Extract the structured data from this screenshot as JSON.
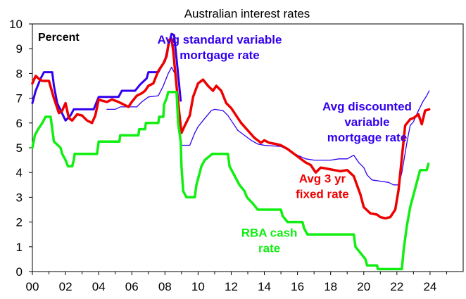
{
  "chart_data": {
    "type": "line",
    "title": "Australian interest rates",
    "unit_label": "Percent",
    "xlabel": "",
    "ylabel": "",
    "xlim": [
      2000,
      2026
    ],
    "ylim": [
      0,
      10
    ],
    "x_ticks": [
      {
        "value": 2000,
        "label": "00"
      },
      {
        "value": 2002,
        "label": "02"
      },
      {
        "value": 2004,
        "label": "04"
      },
      {
        "value": 2006,
        "label": "06"
      },
      {
        "value": 2008,
        "label": "08"
      },
      {
        "value": 2010,
        "label": "10"
      },
      {
        "value": 2012,
        "label": "12"
      },
      {
        "value": 2014,
        "label": "14"
      },
      {
        "value": 2016,
        "label": "16"
      },
      {
        "value": 2018,
        "label": "18"
      },
      {
        "value": 2020,
        "label": "20"
      },
      {
        "value": 2022,
        "label": "22"
      },
      {
        "value": 2024,
        "label": "24"
      }
    ],
    "y_ticks": [
      0,
      1,
      2,
      3,
      4,
      5,
      6,
      7,
      8,
      9,
      10
    ],
    "grid": false,
    "series": [
      {
        "name": "Avg standard variable mortgage rate",
        "color": "#3300ee",
        "stroke_width": 3,
        "points": [
          [
            2000.0,
            6.8
          ],
          [
            2000.2,
            7.3
          ],
          [
            2000.5,
            7.8
          ],
          [
            2000.7,
            8.05
          ],
          [
            2001.2,
            8.05
          ],
          [
            2001.3,
            7.5
          ],
          [
            2001.5,
            6.8
          ],
          [
            2002.0,
            6.1
          ],
          [
            2002.3,
            6.3
          ],
          [
            2002.5,
            6.55
          ],
          [
            2003.7,
            6.55
          ],
          [
            2004.0,
            7.05
          ],
          [
            2005.2,
            7.05
          ],
          [
            2005.4,
            7.3
          ],
          [
            2006.2,
            7.3
          ],
          [
            2006.5,
            7.55
          ],
          [
            2006.9,
            7.8
          ],
          [
            2007.0,
            8.05
          ],
          [
            2007.6,
            8.05
          ],
          [
            2007.8,
            8.3
          ],
          [
            2008.0,
            8.5
          ],
          [
            2008.2,
            9.1
          ],
          [
            2008.4,
            9.6
          ],
          [
            2008.55,
            9.55
          ],
          [
            2008.7,
            8.6
          ],
          [
            2008.85,
            7.6
          ],
          [
            2008.95,
            6.9
          ]
        ]
      },
      {
        "name": "Avg discounted variable mortgage rate",
        "color": "#3300ee",
        "stroke_width": 1.3,
        "points": [
          [
            2004.5,
            6.55
          ],
          [
            2005.0,
            6.55
          ],
          [
            2005.3,
            6.65
          ],
          [
            2006.3,
            6.65
          ],
          [
            2006.6,
            6.85
          ],
          [
            2007.0,
            7.05
          ],
          [
            2007.6,
            7.1
          ],
          [
            2007.9,
            7.5
          ],
          [
            2008.2,
            8.0
          ],
          [
            2008.4,
            8.25
          ],
          [
            2008.6,
            8.0
          ],
          [
            2008.8,
            6.5
          ],
          [
            2009.0,
            5.1
          ],
          [
            2009.5,
            5.1
          ],
          [
            2009.8,
            5.6
          ],
          [
            2010.0,
            5.85
          ],
          [
            2010.3,
            6.1
          ],
          [
            2010.8,
            6.5
          ],
          [
            2011.0,
            6.55
          ],
          [
            2011.5,
            6.5
          ],
          [
            2011.8,
            6.3
          ],
          [
            2012.0,
            6.1
          ],
          [
            2012.4,
            5.7
          ],
          [
            2012.8,
            5.5
          ],
          [
            2013.2,
            5.3
          ],
          [
            2013.6,
            5.15
          ],
          [
            2014.0,
            5.1
          ],
          [
            2015.0,
            5.05
          ],
          [
            2015.6,
            4.85
          ],
          [
            2016.0,
            4.7
          ],
          [
            2016.5,
            4.55
          ],
          [
            2017.0,
            4.5
          ],
          [
            2018.0,
            4.5
          ],
          [
            2018.5,
            4.55
          ],
          [
            2019.0,
            4.55
          ],
          [
            2019.4,
            4.7
          ],
          [
            2019.7,
            4.4
          ],
          [
            2020.0,
            4.2
          ],
          [
            2020.2,
            3.9
          ],
          [
            2020.5,
            3.7
          ],
          [
            2021.0,
            3.65
          ],
          [
            2021.5,
            3.6
          ],
          [
            2021.8,
            3.5
          ],
          [
            2022.1,
            3.5
          ],
          [
            2022.3,
            4.0
          ],
          [
            2022.6,
            5.2
          ],
          [
            2022.8,
            5.9
          ],
          [
            2023.0,
            6.05
          ],
          [
            2023.3,
            6.5
          ],
          [
            2023.6,
            6.9
          ],
          [
            2023.8,
            7.1
          ],
          [
            2023.95,
            7.3
          ]
        ]
      },
      {
        "name": "Avg 3 yr fixed rate",
        "color": "#ee0000",
        "stroke_width": 3.5,
        "points": [
          [
            2000.0,
            7.6
          ],
          [
            2000.2,
            7.9
          ],
          [
            2000.45,
            7.75
          ],
          [
            2000.6,
            7.7
          ],
          [
            2001.0,
            7.7
          ],
          [
            2001.3,
            7.0
          ],
          [
            2001.6,
            6.4
          ],
          [
            2001.8,
            6.5
          ],
          [
            2002.0,
            6.8
          ],
          [
            2002.2,
            6.2
          ],
          [
            2002.4,
            6.1
          ],
          [
            2002.7,
            6.35
          ],
          [
            2003.0,
            6.3
          ],
          [
            2003.3,
            6.1
          ],
          [
            2003.6,
            6.0
          ],
          [
            2003.8,
            6.3
          ],
          [
            2004.0,
            6.95
          ],
          [
            2004.2,
            6.9
          ],
          [
            2004.5,
            6.85
          ],
          [
            2004.8,
            6.95
          ],
          [
            2005.2,
            6.85
          ],
          [
            2005.5,
            6.75
          ],
          [
            2005.8,
            6.65
          ],
          [
            2006.0,
            6.85
          ],
          [
            2006.3,
            7.1
          ],
          [
            2006.6,
            7.2
          ],
          [
            2006.8,
            7.3
          ],
          [
            2007.0,
            7.5
          ],
          [
            2007.3,
            7.6
          ],
          [
            2007.6,
            8.1
          ],
          [
            2007.9,
            8.4
          ],
          [
            2008.1,
            8.7
          ],
          [
            2008.25,
            9.35
          ],
          [
            2008.4,
            9.4
          ],
          [
            2008.5,
            8.9
          ],
          [
            2008.7,
            7.5
          ],
          [
            2008.85,
            6.5
          ],
          [
            2009.0,
            5.6
          ],
          [
            2009.2,
            5.9
          ],
          [
            2009.5,
            6.3
          ],
          [
            2009.7,
            7.05
          ],
          [
            2010.0,
            7.6
          ],
          [
            2010.3,
            7.75
          ],
          [
            2010.6,
            7.5
          ],
          [
            2010.9,
            7.3
          ],
          [
            2011.1,
            7.5
          ],
          [
            2011.4,
            7.3
          ],
          [
            2011.7,
            6.8
          ],
          [
            2012.0,
            6.6
          ],
          [
            2012.3,
            6.3
          ],
          [
            2012.6,
            6.0
          ],
          [
            2013.0,
            5.7
          ],
          [
            2013.4,
            5.4
          ],
          [
            2013.8,
            5.2
          ],
          [
            2014.0,
            5.3
          ],
          [
            2014.3,
            5.2
          ],
          [
            2014.7,
            5.15
          ],
          [
            2015.0,
            5.1
          ],
          [
            2015.4,
            4.95
          ],
          [
            2015.8,
            4.75
          ],
          [
            2016.1,
            4.6
          ],
          [
            2016.5,
            4.4
          ],
          [
            2016.8,
            4.3
          ],
          [
            2017.1,
            4.0
          ],
          [
            2017.4,
            4.2
          ],
          [
            2017.8,
            4.15
          ],
          [
            2018.2,
            4.1
          ],
          [
            2018.6,
            4.05
          ],
          [
            2019.0,
            4.1
          ],
          [
            2019.4,
            3.85
          ],
          [
            2019.8,
            3.1
          ],
          [
            2020.0,
            2.6
          ],
          [
            2020.4,
            2.35
          ],
          [
            2020.8,
            2.3
          ],
          [
            2021.0,
            2.2
          ],
          [
            2021.3,
            2.15
          ],
          [
            2021.6,
            2.2
          ],
          [
            2021.9,
            2.5
          ],
          [
            2022.1,
            3.3
          ],
          [
            2022.3,
            4.6
          ],
          [
            2022.5,
            5.9
          ],
          [
            2022.8,
            6.15
          ],
          [
            2023.0,
            6.2
          ],
          [
            2023.3,
            6.35
          ],
          [
            2023.5,
            5.95
          ],
          [
            2023.7,
            6.5
          ],
          [
            2023.95,
            6.55
          ]
        ]
      },
      {
        "name": "RBA cash rate",
        "color": "#11ee11",
        "stroke_width": 3.5,
        "points": [
          [
            2000.0,
            5.0
          ],
          [
            2000.15,
            5.5
          ],
          [
            2000.35,
            5.75
          ],
          [
            2000.6,
            6.0
          ],
          [
            2000.8,
            6.25
          ],
          [
            2001.1,
            6.25
          ],
          [
            2001.2,
            5.75
          ],
          [
            2001.3,
            5.25
          ],
          [
            2001.7,
            5.0
          ],
          [
            2001.8,
            4.75
          ],
          [
            2002.0,
            4.5
          ],
          [
            2002.15,
            4.25
          ],
          [
            2002.4,
            4.25
          ],
          [
            2002.5,
            4.5
          ],
          [
            2002.55,
            4.75
          ],
          [
            2003.9,
            4.75
          ],
          [
            2003.95,
            5.0
          ],
          [
            2004.0,
            5.25
          ],
          [
            2005.25,
            5.25
          ],
          [
            2005.3,
            5.5
          ],
          [
            2006.4,
            5.5
          ],
          [
            2006.45,
            5.75
          ],
          [
            2006.8,
            5.75
          ],
          [
            2006.85,
            6.0
          ],
          [
            2007.6,
            6.0
          ],
          [
            2007.65,
            6.25
          ],
          [
            2007.9,
            6.25
          ],
          [
            2007.95,
            6.75
          ],
          [
            2008.1,
            7.0
          ],
          [
            2008.2,
            7.25
          ],
          [
            2008.7,
            7.25
          ],
          [
            2008.8,
            6.0
          ],
          [
            2008.95,
            5.25
          ],
          [
            2009.0,
            4.25
          ],
          [
            2009.1,
            3.25
          ],
          [
            2009.3,
            3.0
          ],
          [
            2009.8,
            3.0
          ],
          [
            2009.9,
            3.5
          ],
          [
            2010.0,
            3.75
          ],
          [
            2010.2,
            4.25
          ],
          [
            2010.4,
            4.5
          ],
          [
            2010.85,
            4.75
          ],
          [
            2011.8,
            4.75
          ],
          [
            2011.9,
            4.25
          ],
          [
            2012.3,
            3.75
          ],
          [
            2012.5,
            3.5
          ],
          [
            2012.8,
            3.25
          ],
          [
            2012.95,
            3.0
          ],
          [
            2013.3,
            2.75
          ],
          [
            2013.6,
            2.5
          ],
          [
            2015.0,
            2.5
          ],
          [
            2015.1,
            2.25
          ],
          [
            2015.4,
            2.0
          ],
          [
            2016.3,
            2.0
          ],
          [
            2016.4,
            1.75
          ],
          [
            2016.6,
            1.5
          ],
          [
            2019.4,
            1.5
          ],
          [
            2019.5,
            1.0
          ],
          [
            2019.8,
            0.75
          ],
          [
            2020.1,
            0.5
          ],
          [
            2020.2,
            0.25
          ],
          [
            2020.8,
            0.25
          ],
          [
            2020.85,
            0.1
          ],
          [
            2022.3,
            0.1
          ],
          [
            2022.4,
            0.85
          ],
          [
            2022.6,
            1.85
          ],
          [
            2022.8,
            2.6
          ],
          [
            2023.0,
            3.1
          ],
          [
            2023.2,
            3.6
          ],
          [
            2023.4,
            4.1
          ],
          [
            2023.8,
            4.1
          ],
          [
            2023.9,
            4.35
          ]
        ]
      }
    ],
    "annotations": [
      {
        "lines": [
          "Avg standard variable",
          "mortgage rate"
        ],
        "color": "#3300ee",
        "at": [
          2011.3,
          9.2
        ]
      },
      {
        "lines": [
          "Avg discounted",
          "variable",
          "mortgage rate"
        ],
        "color": "#3300ee",
        "at": [
          2020.2,
          6.5
        ]
      },
      {
        "lines": [
          "Avg 3 yr",
          "fixed rate"
        ],
        "color": "#ee0000",
        "at": [
          2017.5,
          3.6
        ]
      },
      {
        "lines": [
          "RBA cash",
          "rate"
        ],
        "color": "#11ee11",
        "at": [
          2014.3,
          1.4
        ]
      }
    ]
  }
}
